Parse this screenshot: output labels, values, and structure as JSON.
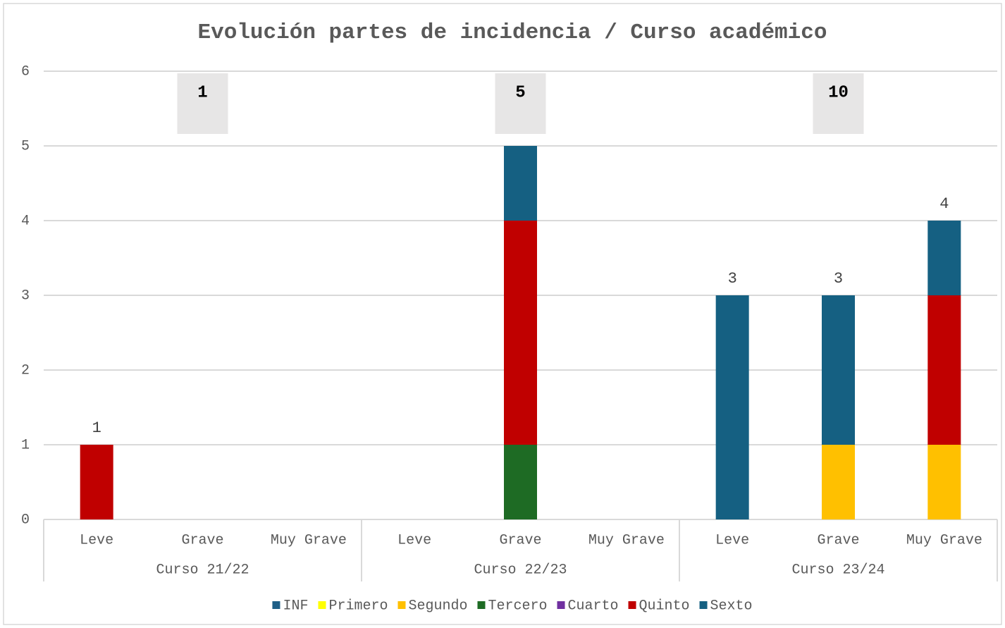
{
  "chart_data": {
    "type": "stacked_bar",
    "title": "Evolución partes de incidencia / Curso académico",
    "categories": [
      "Leve",
      "Grave",
      "Muy Grave",
      "Leve",
      "Grave",
      "Muy Grave",
      "Leve",
      "Grave",
      "Muy Grave"
    ],
    "groups": [
      "Curso 21/22",
      "Curso 22/23",
      "Curso 23/24"
    ],
    "series": [
      {
        "name": "INF",
        "color": "#1f5f87",
        "values": [
          0,
          0,
          0,
          0,
          0,
          0,
          0,
          0,
          0
        ]
      },
      {
        "name": "Primero",
        "color": "#ffff00",
        "values": [
          0,
          0,
          0,
          0,
          0,
          0,
          0,
          0,
          0
        ]
      },
      {
        "name": "Segundo",
        "color": "#ffc000",
        "values": [
          0,
          0,
          0,
          0,
          0,
          0,
          0,
          1,
          1
        ]
      },
      {
        "name": "Tercero",
        "color": "#1e6b24",
        "values": [
          0,
          0,
          0,
          0,
          1,
          0,
          0,
          0,
          0
        ]
      },
      {
        "name": "Cuarto",
        "color": "#7030a0",
        "values": [
          0,
          0,
          0,
          0,
          0,
          0,
          0,
          0,
          0
        ]
      },
      {
        "name": "Quinto",
        "color": "#c00000",
        "values": [
          1,
          0,
          0,
          0,
          3,
          0,
          0,
          0,
          2
        ]
      },
      {
        "name": "Sexto",
        "color": "#156082",
        "values": [
          0,
          0,
          0,
          0,
          1,
          0,
          3,
          2,
          1
        ]
      }
    ],
    "totals": [
      1,
      null,
      null,
      null,
      5,
      null,
      3,
      3,
      4
    ],
    "group_totals": [
      1,
      5,
      10
    ],
    "ylim": [
      0,
      6
    ],
    "yticks": [
      0,
      1,
      2,
      3,
      4,
      5,
      6
    ],
    "grid": true
  }
}
